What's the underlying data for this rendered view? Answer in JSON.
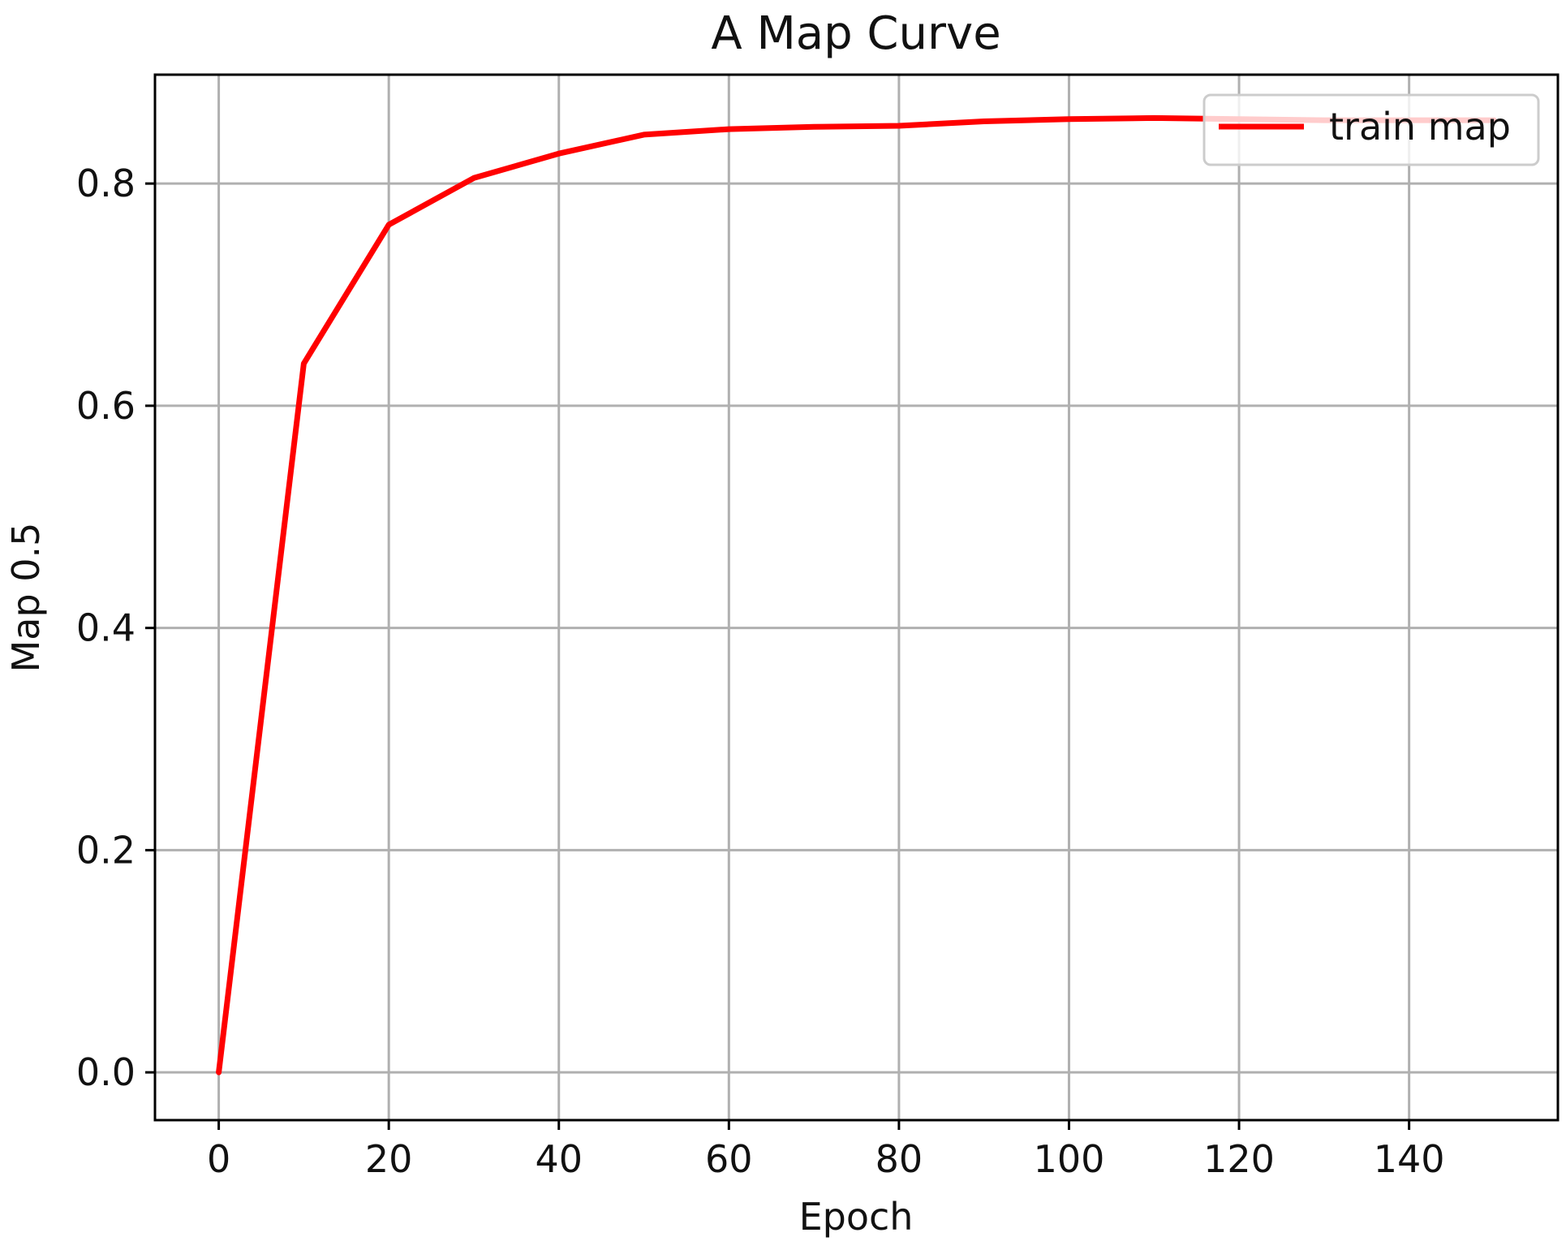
{
  "chart_data": {
    "type": "line",
    "title": "A Map Curve",
    "xlabel": "Epoch",
    "ylabel": "Map 0.5",
    "xlim": [
      -7.5,
      157.5
    ],
    "ylim": [
      -0.043,
      0.898
    ],
    "xticks": [
      0,
      20,
      40,
      60,
      80,
      100,
      120,
      140
    ],
    "xtick_labels": [
      "0",
      "20",
      "40",
      "60",
      "80",
      "100",
      "120",
      "140"
    ],
    "yticks": [
      0.0,
      0.2,
      0.4,
      0.6,
      0.8
    ],
    "ytick_labels": [
      "0.0",
      "0.2",
      "0.4",
      "0.6",
      "0.8"
    ],
    "grid": true,
    "legend_position": "upper-right",
    "series": [
      {
        "name": "train map",
        "color": "#ff0000",
        "x": [
          0,
          10,
          20,
          30,
          40,
          50,
          60,
          70,
          80,
          90,
          100,
          110,
          120,
          130,
          140,
          150
        ],
        "y": [
          0.0,
          0.638,
          0.763,
          0.805,
          0.827,
          0.844,
          0.849,
          0.851,
          0.852,
          0.856,
          0.858,
          0.859,
          0.858,
          0.857,
          0.857,
          0.857
        ]
      }
    ]
  }
}
